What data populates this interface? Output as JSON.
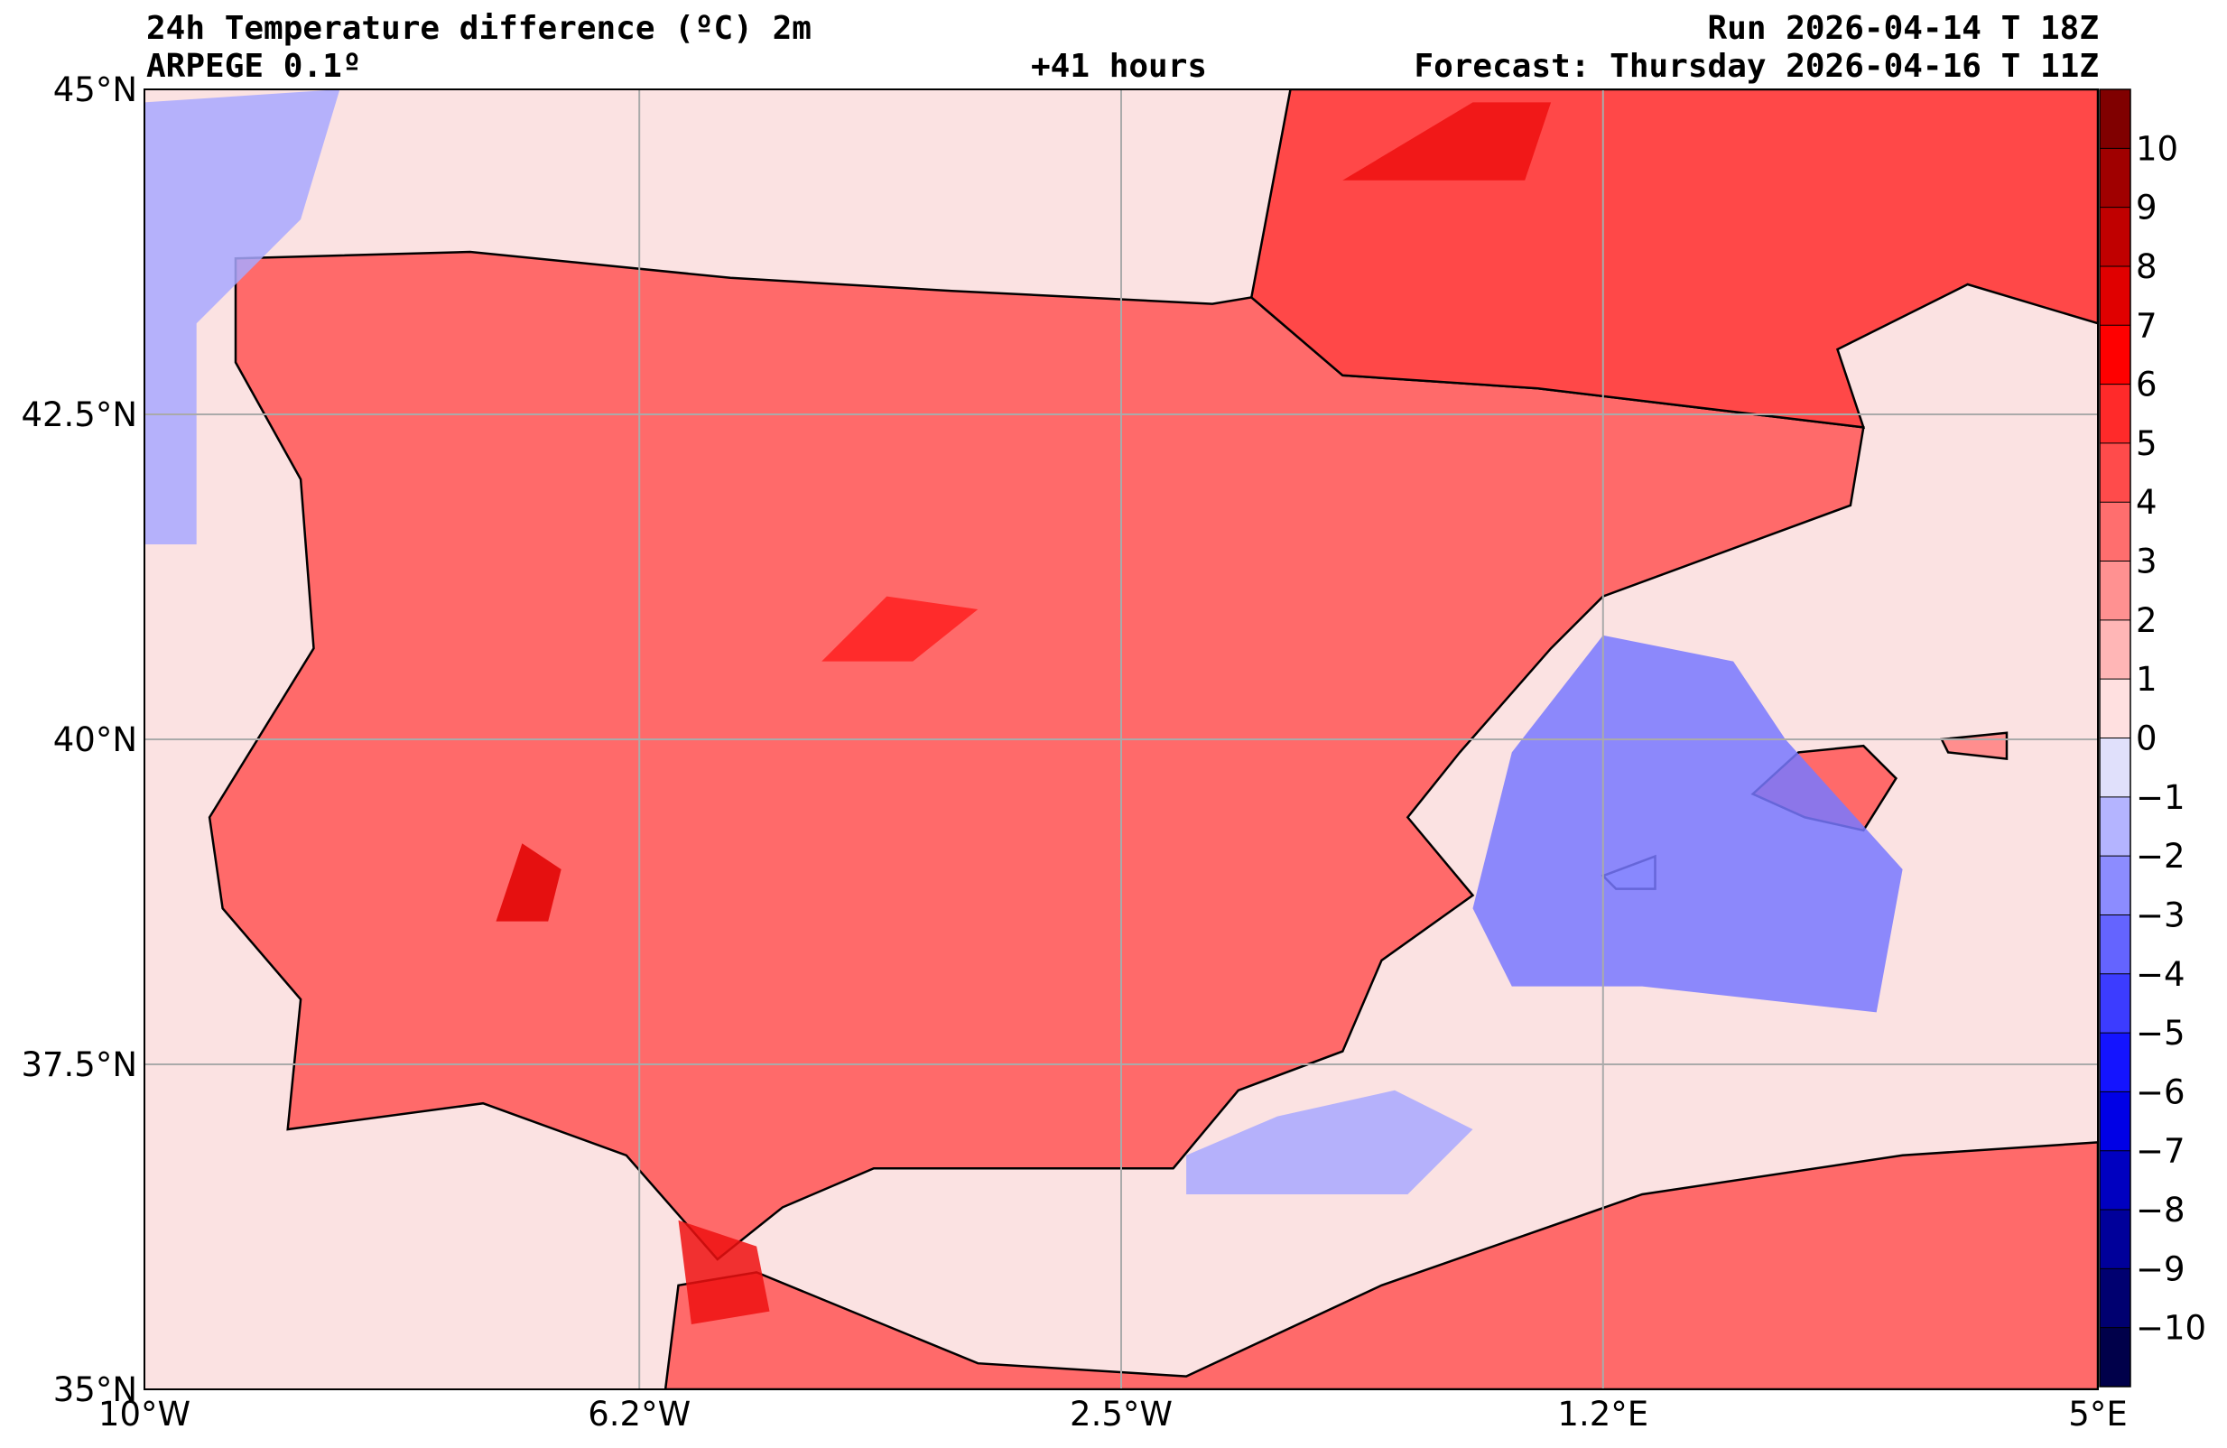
{
  "header": {
    "title": "24h Temperature difference (ºC) 2m",
    "model": "ARPEGE 0.1º",
    "lead": "+41 hours",
    "run": "Run 2026-04-14 T 18Z",
    "forecast": "Forecast: Thursday 2026-04-16 T 11Z"
  },
  "map": {
    "lon_range": [
      -10,
      5
    ],
    "lat_range": [
      35,
      45
    ],
    "lat_labels": [
      {
        "lat": 45,
        "text": "45°N"
      },
      {
        "lat": 42.5,
        "text": "42.5°N"
      },
      {
        "lat": 40,
        "text": "40°N"
      },
      {
        "lat": 37.5,
        "text": "37.5°N"
      },
      {
        "lat": 35,
        "text": "35°N"
      }
    ],
    "lon_labels": [
      {
        "lon": -10,
        "text": "10°W"
      },
      {
        "lon": -6.2,
        "text": "6.2°W"
      },
      {
        "lon": -2.5,
        "text": "2.5°W"
      },
      {
        "lon": 1.2,
        "text": "1.2°E"
      },
      {
        "lon": 5,
        "text": "5°E"
      }
    ],
    "regions": [
      {
        "name": "iberian-peninsula",
        "value": 3,
        "color": "#ff6a6a",
        "lonlat": [
          [
            -9.3,
            43.7
          ],
          [
            -7.5,
            43.75
          ],
          [
            -5.5,
            43.55
          ],
          [
            -3.8,
            43.45
          ],
          [
            -1.8,
            43.35
          ],
          [
            -1.5,
            43.4
          ],
          [
            -0.8,
            42.8
          ],
          [
            0.7,
            42.7
          ],
          [
            3.2,
            42.4
          ],
          [
            3.1,
            41.8
          ],
          [
            1.2,
            41.1
          ],
          [
            0.8,
            40.7
          ],
          [
            0.1,
            39.9
          ],
          [
            -0.3,
            39.4
          ],
          [
            0.2,
            38.8
          ],
          [
            -0.5,
            38.3
          ],
          [
            -0.8,
            37.6
          ],
          [
            -1.6,
            37.3
          ],
          [
            -2.1,
            36.7
          ],
          [
            -3.5,
            36.7
          ],
          [
            -4.4,
            36.7
          ],
          [
            -5.1,
            36.4
          ],
          [
            -5.6,
            36.0
          ],
          [
            -6.3,
            36.8
          ],
          [
            -7.4,
            37.2
          ],
          [
            -8.9,
            37.0
          ],
          [
            -8.8,
            38.0
          ],
          [
            -9.4,
            38.7
          ],
          [
            -9.5,
            39.4
          ],
          [
            -8.7,
            40.7
          ],
          [
            -8.8,
            42.0
          ],
          [
            -9.3,
            42.9
          ]
        ]
      },
      {
        "name": "southern-france",
        "value": 4,
        "color": "#ff4848",
        "lonlat": [
          [
            -1.2,
            45
          ],
          [
            5,
            45
          ],
          [
            5,
            43.2
          ],
          [
            4.0,
            43.5
          ],
          [
            3.0,
            43.0
          ],
          [
            3.2,
            42.4
          ],
          [
            0.7,
            42.7
          ],
          [
            -0.8,
            42.8
          ],
          [
            -1.5,
            43.4
          ]
        ]
      },
      {
        "name": "north-africa",
        "value": 3,
        "color": "#ff6a6a",
        "lonlat": [
          [
            -6.0,
            35
          ],
          [
            5,
            35
          ],
          [
            5,
            36.9
          ],
          [
            3.5,
            36.8
          ],
          [
            1.5,
            36.5
          ],
          [
            -0.5,
            35.8
          ],
          [
            -2.0,
            35.1
          ],
          [
            -3.6,
            35.2
          ],
          [
            -5.3,
            35.9
          ],
          [
            -5.9,
            35.8
          ]
        ]
      },
      {
        "name": "mallorca",
        "value": 3,
        "color": "#ff6a6a",
        "lonlat": [
          [
            2.35,
            39.58
          ],
          [
            2.7,
            39.9
          ],
          [
            3.2,
            39.95
          ],
          [
            3.45,
            39.7
          ],
          [
            3.2,
            39.3
          ],
          [
            2.75,
            39.4
          ]
        ]
      },
      {
        "name": "menorca",
        "value": 2,
        "color": "#ff8e8e",
        "lonlat": [
          [
            3.8,
            40.0
          ],
          [
            4.3,
            40.05
          ],
          [
            4.3,
            39.85
          ],
          [
            3.85,
            39.9
          ]
        ]
      },
      {
        "name": "ibiza",
        "value": 0,
        "color": "#e0e0f8",
        "lonlat": [
          [
            1.2,
            38.95
          ],
          [
            1.6,
            39.1
          ],
          [
            1.6,
            38.85
          ],
          [
            1.3,
            38.85
          ]
        ]
      }
    ],
    "anomalies": [
      {
        "name": "balearic-sea-cooling",
        "value": -3,
        "color": "#7878ff",
        "lonlat": [
          [
            0.2,
            38.7
          ],
          [
            0.5,
            39.9
          ],
          [
            1.2,
            40.8
          ],
          [
            2.2,
            40.6
          ],
          [
            2.6,
            40.0
          ],
          [
            3.5,
            39.0
          ],
          [
            3.3,
            37.9
          ],
          [
            1.5,
            38.1
          ],
          [
            0.5,
            38.1
          ]
        ]
      },
      {
        "name": "alboran-sea-cooling",
        "value": -2,
        "color": "#a8a8ff",
        "lonlat": [
          [
            -2.0,
            36.8
          ],
          [
            -1.3,
            37.1
          ],
          [
            -0.4,
            37.3
          ],
          [
            0.2,
            37.0
          ],
          [
            -0.3,
            36.5
          ],
          [
            -2.0,
            36.5
          ]
        ]
      },
      {
        "name": "atlantic-cooling",
        "value": -2,
        "color": "#a8a8ff",
        "lonlat": [
          [
            -10,
            41.5
          ],
          [
            -10,
            44.9
          ],
          [
            -8.5,
            45
          ],
          [
            -8.8,
            44.0
          ],
          [
            -9.6,
            43.2
          ],
          [
            -9.6,
            41.5
          ]
        ]
      },
      {
        "name": "extremadura-warm-core",
        "value": 8,
        "color": "#e00000",
        "lonlat": [
          [
            -7.3,
            38.6
          ],
          [
            -7.1,
            39.2
          ],
          [
            -6.8,
            39.0
          ],
          [
            -6.9,
            38.6
          ]
        ]
      },
      {
        "name": "castilla-warm-core",
        "value": 5,
        "color": "#ff2020",
        "lonlat": [
          [
            -4.8,
            40.6
          ],
          [
            -4.3,
            41.1
          ],
          [
            -3.6,
            41.0
          ],
          [
            -4.1,
            40.6
          ]
        ]
      },
      {
        "name": "gironde-warm-core",
        "value": 6,
        "color": "#ee1010",
        "lonlat": [
          [
            -0.8,
            44.3
          ],
          [
            0.2,
            44.9
          ],
          [
            0.8,
            44.9
          ],
          [
            0.6,
            44.3
          ]
        ]
      },
      {
        "name": "gibraltar-warm-core",
        "value": 6,
        "color": "#ee1010",
        "lonlat": [
          [
            -5.9,
            36.3
          ],
          [
            -5.3,
            36.1
          ],
          [
            -5.2,
            35.6
          ],
          [
            -5.8,
            35.5
          ]
        ]
      }
    ]
  },
  "colorbar": {
    "levels": [
      10,
      9,
      8,
      7,
      6,
      5,
      4,
      3,
      2,
      1,
      0,
      -1,
      -2,
      -3,
      -4,
      -5,
      -6,
      -7,
      -8,
      -9,
      -10
    ],
    "labels": [
      "10",
      "9",
      "8",
      "7",
      "6",
      "5",
      "4",
      "3",
      "2",
      "1",
      "0",
      "−1",
      "−2",
      "−3",
      "−4",
      "−5",
      "−6",
      "−7",
      "−8",
      "−9",
      "−10"
    ],
    "colors": [
      "#800000",
      "#a00000",
      "#c00000",
      "#e00000",
      "#ff0000",
      "#ff2a2a",
      "#ff4b4b",
      "#ff6e6e",
      "#ff9191",
      "#ffb6b6",
      "#ffe0e0",
      "#e0e0fb",
      "#b4b4ff",
      "#8c8cff",
      "#6464ff",
      "#3c3cff",
      "#1414ff",
      "#0000e6",
      "#0000c0",
      "#00009a",
      "#000070",
      "#00004a"
    ]
  }
}
